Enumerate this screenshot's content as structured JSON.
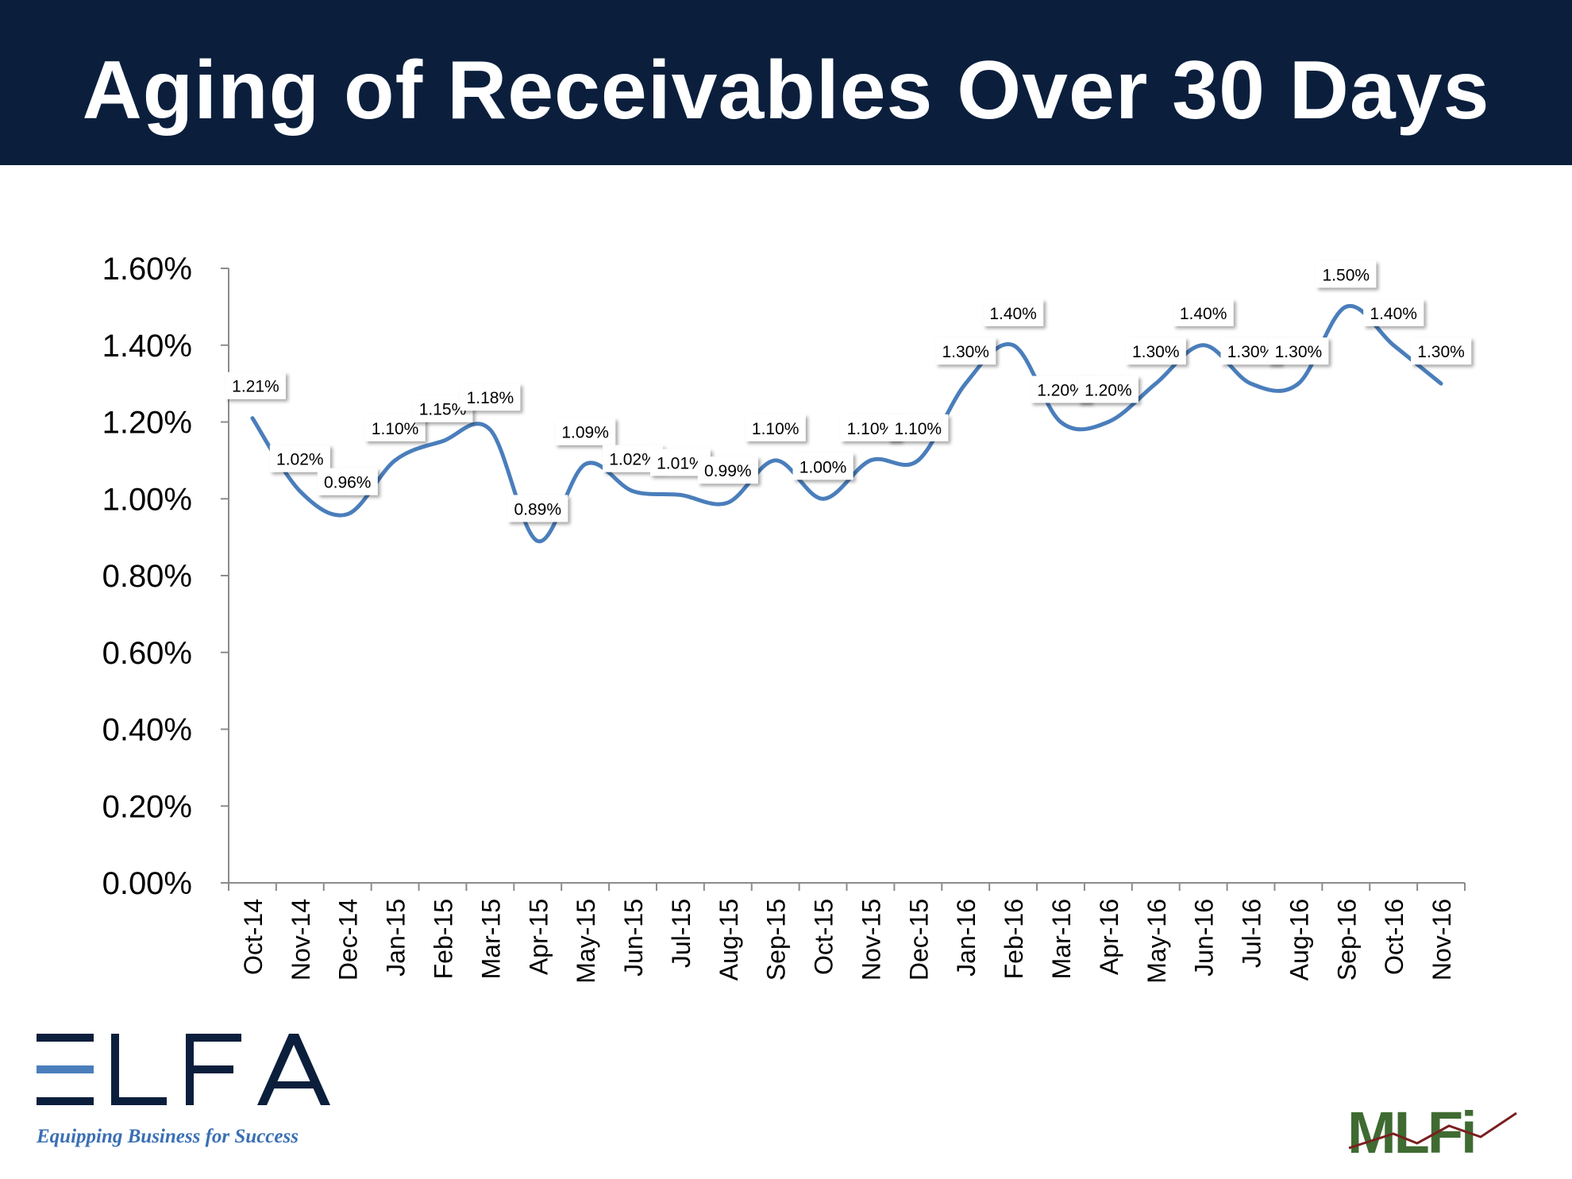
{
  "header": {
    "title": "Aging of Receivables Over 30 Days"
  },
  "chart_data": {
    "type": "line",
    "title": "",
    "xlabel": "",
    "ylabel": "",
    "ylim": [
      0,
      0.016
    ],
    "y_ticks": [
      "0.00%",
      "0.20%",
      "0.40%",
      "0.60%",
      "0.80%",
      "1.00%",
      "1.20%",
      "1.40%",
      "1.60%"
    ],
    "categories": [
      "Oct-14",
      "Nov-14",
      "Dec-14",
      "Jan-15",
      "Feb-15",
      "Mar-15",
      "Apr-15",
      "May-15",
      "Jun-15",
      "Jul-15",
      "Aug-15",
      "Sep-15",
      "Oct-15",
      "Nov-15",
      "Dec-15",
      "Jan-16",
      "Feb-16",
      "Mar-16",
      "Apr-16",
      "May-16",
      "Jun-16",
      "Jul-16",
      "Aug-16",
      "Sep-16",
      "Oct-16",
      "Nov-16"
    ],
    "series": [
      {
        "values": [
          0.0121,
          0.0102,
          0.0096,
          0.011,
          0.0115,
          0.0118,
          0.0089,
          0.0109,
          0.0102,
          0.0101,
          0.0099,
          0.011,
          0.01,
          0.011,
          0.011,
          0.013,
          0.014,
          0.012,
          0.012,
          0.013,
          0.014,
          0.013,
          0.013,
          0.015,
          0.014,
          0.013
        ],
        "data_labels": [
          "1.21%",
          "1.02%",
          "0.96%",
          "1.10%",
          "1.15%",
          "1.18%",
          "0.89%",
          "1.09%",
          "1.02%",
          "1.01%",
          "0.99%",
          "1.10%",
          "1.00%",
          "1.10%",
          "1.10%",
          "1.30%",
          "1.40%",
          "1.20%",
          "1.20%",
          "1.30%",
          "1.40%",
          "1.30%",
          "1.30%",
          "1.50%",
          "1.40%",
          "1.30%"
        ],
        "color": "#4a7ebb"
      }
    ],
    "grid": false,
    "legend": "none"
  },
  "logos": {
    "elfa": {
      "text": "ELFA",
      "tagline": "Equipping Business for Success",
      "color": "#0b1f3d",
      "accent": "#4a7ebb"
    },
    "mlfi": {
      "text": "MLFi",
      "color": "#3f6b32"
    }
  }
}
